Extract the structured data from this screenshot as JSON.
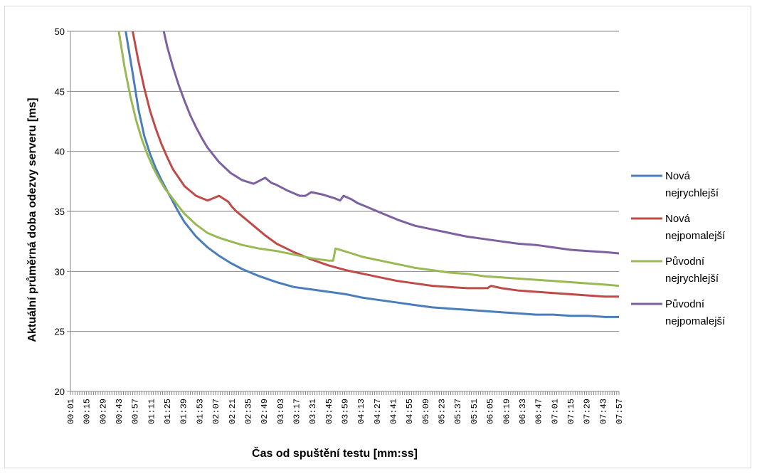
{
  "chart_data": {
    "type": "line",
    "title": "",
    "xlabel": "Čas od spuštění testu [mm:ss]",
    "ylabel": "Aktuální průměrná doba odezvy serveru [ms]",
    "ylim": [
      20,
      50
    ],
    "yticks": [
      20,
      25,
      30,
      35,
      40,
      45,
      50
    ],
    "xlim": [
      1,
      477
    ],
    "xtick_labels": [
      "00:01",
      "00:15",
      "00:29",
      "00:43",
      "00:57",
      "01:11",
      "01:25",
      "01:39",
      "01:53",
      "02:07",
      "02:21",
      "02:35",
      "02:49",
      "03:03",
      "03:17",
      "03:31",
      "03:45",
      "03:59",
      "04:13",
      "04:27",
      "04:41",
      "04:55",
      "05:09",
      "05:23",
      "05:37",
      "05:51",
      "06:05",
      "06:19",
      "06:33",
      "06:47",
      "07:01",
      "07:15",
      "07:29",
      "07:43",
      "07:57"
    ],
    "grid": "horizontal",
    "legend_position": "right",
    "series": [
      {
        "name": "Nová nejrychlejší",
        "color": "#4a7ebb",
        "x": [
          49,
          55,
          60,
          65,
          70,
          75,
          80,
          85,
          90,
          95,
          100,
          110,
          120,
          130,
          140,
          150,
          165,
          180,
          195,
          210,
          225,
          240,
          255,
          270,
          285,
          300,
          315,
          330,
          345,
          360,
          375,
          390,
          405,
          420,
          435,
          450,
          465,
          477
        ],
        "y": [
          50,
          46.5,
          43.5,
          41.3,
          39.8,
          38.6,
          37.6,
          36.7,
          35.8,
          34.9,
          34.1,
          32.9,
          32.0,
          31.3,
          30.7,
          30.2,
          29.6,
          29.1,
          28.7,
          28.5,
          28.3,
          28.1,
          27.8,
          27.6,
          27.4,
          27.2,
          27.0,
          26.9,
          26.8,
          26.7,
          26.6,
          26.5,
          26.4,
          26.4,
          26.3,
          26.3,
          26.2,
          26.2
        ]
      },
      {
        "name": "Nová nejpomalejší",
        "color": "#be4b48",
        "x": [
          55,
          60,
          65,
          70,
          75,
          80,
          85,
          90,
          95,
          100,
          110,
          120,
          130,
          138,
          141,
          145,
          150,
          160,
          170,
          180,
          195,
          210,
          225,
          240,
          255,
          270,
          285,
          300,
          315,
          330,
          345,
          360,
          363,
          366,
          375,
          390,
          405,
          420,
          435,
          450,
          465,
          477
        ],
        "y": [
          50,
          47.5,
          45.3,
          43.4,
          41.9,
          40.6,
          39.5,
          38.5,
          37.8,
          37.1,
          36.3,
          35.9,
          36.3,
          35.8,
          35.4,
          35.0,
          34.6,
          33.8,
          33.0,
          32.3,
          31.6,
          31.0,
          30.5,
          30.1,
          29.8,
          29.5,
          29.2,
          29.0,
          28.8,
          28.7,
          28.6,
          28.6,
          28.6,
          28.8,
          28.6,
          28.4,
          28.3,
          28.2,
          28.1,
          28.0,
          27.9,
          27.9
        ]
      },
      {
        "name": "Původní nejrychlejší",
        "color": "#98b954",
        "x": [
          43,
          48,
          53,
          58,
          63,
          68,
          73,
          78,
          83,
          88,
          95,
          100,
          110,
          120,
          130,
          140,
          150,
          165,
          180,
          195,
          210,
          225,
          229,
          231,
          235,
          245,
          255,
          270,
          285,
          300,
          315,
          330,
          345,
          360,
          375,
          390,
          405,
          420,
          435,
          450,
          465,
          477
        ],
        "y": [
          50,
          47.0,
          44.6,
          42.6,
          41.0,
          39.7,
          38.6,
          37.7,
          36.9,
          36.3,
          35.4,
          34.8,
          33.9,
          33.2,
          32.8,
          32.5,
          32.2,
          31.9,
          31.7,
          31.4,
          31.1,
          30.9,
          30.9,
          31.9,
          31.8,
          31.5,
          31.2,
          30.9,
          30.6,
          30.3,
          30.1,
          29.9,
          29.8,
          29.6,
          29.5,
          29.4,
          29.3,
          29.2,
          29.1,
          29.0,
          28.9,
          28.8
        ]
      },
      {
        "name": "Původní nejpomalejší",
        "color": "#7d60a0",
        "x": [
          82,
          85,
          90,
          95,
          100,
          105,
          110,
          115,
          120,
          125,
          130,
          140,
          150,
          160,
          170,
          175,
          180,
          190,
          200,
          205,
          210,
          220,
          230,
          235,
          238,
          245,
          250,
          260,
          270,
          285,
          300,
          315,
          330,
          345,
          360,
          375,
          390,
          405,
          420,
          435,
          450,
          465,
          477
        ],
        "y": [
          50,
          48.7,
          47.0,
          45.5,
          44.2,
          43.0,
          42.0,
          41.1,
          40.3,
          39.7,
          39.1,
          38.2,
          37.6,
          37.3,
          37.8,
          37.4,
          37.2,
          36.7,
          36.3,
          36.3,
          36.6,
          36.4,
          36.1,
          35.9,
          36.3,
          36.0,
          35.7,
          35.3,
          34.9,
          34.3,
          33.8,
          33.5,
          33.2,
          32.9,
          32.7,
          32.5,
          32.3,
          32.2,
          32.0,
          31.8,
          31.7,
          31.6,
          31.5
        ]
      }
    ]
  }
}
